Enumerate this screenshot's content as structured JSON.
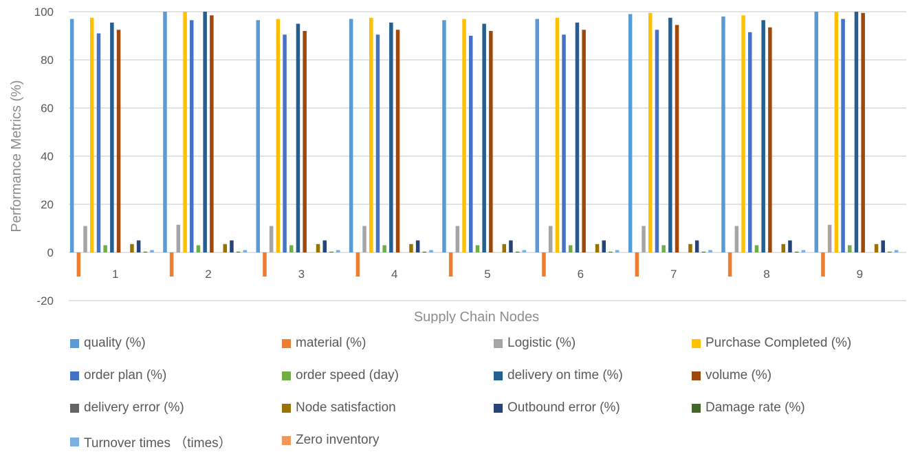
{
  "chart_data": {
    "type": "bar",
    "xlabel": "Supply Chain Nodes",
    "ylabel": "Performance Metrics (%)",
    "ylim": [
      -20,
      100
    ],
    "yticks": [
      -20,
      0,
      20,
      40,
      60,
      80,
      100
    ],
    "grid": true,
    "legend_position": "bottom",
    "categories": [
      "1",
      "2",
      "3",
      "4",
      "5",
      "6",
      "7",
      "8",
      "9"
    ],
    "series": [
      {
        "name": "quality (%)",
        "color": "#5b9bd5",
        "values": [
          97,
          100,
          96.5,
          97,
          96.5,
          97,
          99,
          98,
          100
        ]
      },
      {
        "name": "material (%)",
        "color": "#ed7d31",
        "values": [
          -10,
          -10,
          -10,
          -10,
          -10,
          -10,
          -10,
          -10,
          -10
        ]
      },
      {
        "name": "Logistic (%)",
        "color": "#a5a5a5",
        "values": [
          11,
          11.5,
          11,
          11,
          11,
          11,
          11,
          11,
          11.5
        ]
      },
      {
        "name": "Purchase Completed (%)",
        "color": "#ffc000",
        "values": [
          97.5,
          100,
          97,
          97.5,
          97,
          97.5,
          99.5,
          98.5,
          100
        ]
      },
      {
        "name": "order plan (%)",
        "color": "#4472c4",
        "values": [
          91,
          96.5,
          90.5,
          90.5,
          90,
          90.5,
          92.5,
          91.5,
          97
        ]
      },
      {
        "name": "order speed (day)",
        "color": "#70ad47",
        "values": [
          3,
          3,
          3,
          3,
          3,
          3,
          3,
          3,
          3
        ]
      },
      {
        "name": "delivery on time (%)",
        "color": "#255e91",
        "values": [
          95.5,
          100,
          95,
          95.5,
          95,
          95.5,
          97.5,
          96.5,
          100
        ]
      },
      {
        "name": "volume (%)",
        "color": "#9e480e",
        "values": [
          92.5,
          98.5,
          92,
          92.5,
          92,
          92.5,
          94.5,
          93.5,
          99.5
        ]
      },
      {
        "name": "delivery error (%)",
        "color": "#636363",
        "values": [
          0,
          0,
          0,
          0,
          0,
          0,
          0,
          0,
          0
        ]
      },
      {
        "name": "Node satisfaction",
        "color": "#997300",
        "values": [
          3.5,
          3.5,
          3.5,
          3.5,
          3.5,
          3.5,
          3.5,
          3.5,
          3.5
        ]
      },
      {
        "name": "Outbound error (%)",
        "color": "#264478",
        "values": [
          5,
          5,
          5,
          5,
          5,
          5,
          5,
          5,
          5
        ]
      },
      {
        "name": "Damage rate (%)",
        "color": "#43682b",
        "values": [
          0.3,
          0.3,
          0.3,
          0.3,
          0.3,
          0.3,
          0.3,
          0.3,
          0.3
        ]
      },
      {
        "name": "Turnover times （times）",
        "color": "#7cafdd",
        "values": [
          1,
          1,
          1,
          1,
          1,
          1,
          1,
          1,
          1
        ]
      },
      {
        "name": "Zero inventory",
        "color": "#f1975a",
        "values": [
          0,
          0,
          0,
          0,
          0,
          0,
          0,
          0,
          0
        ]
      }
    ]
  }
}
